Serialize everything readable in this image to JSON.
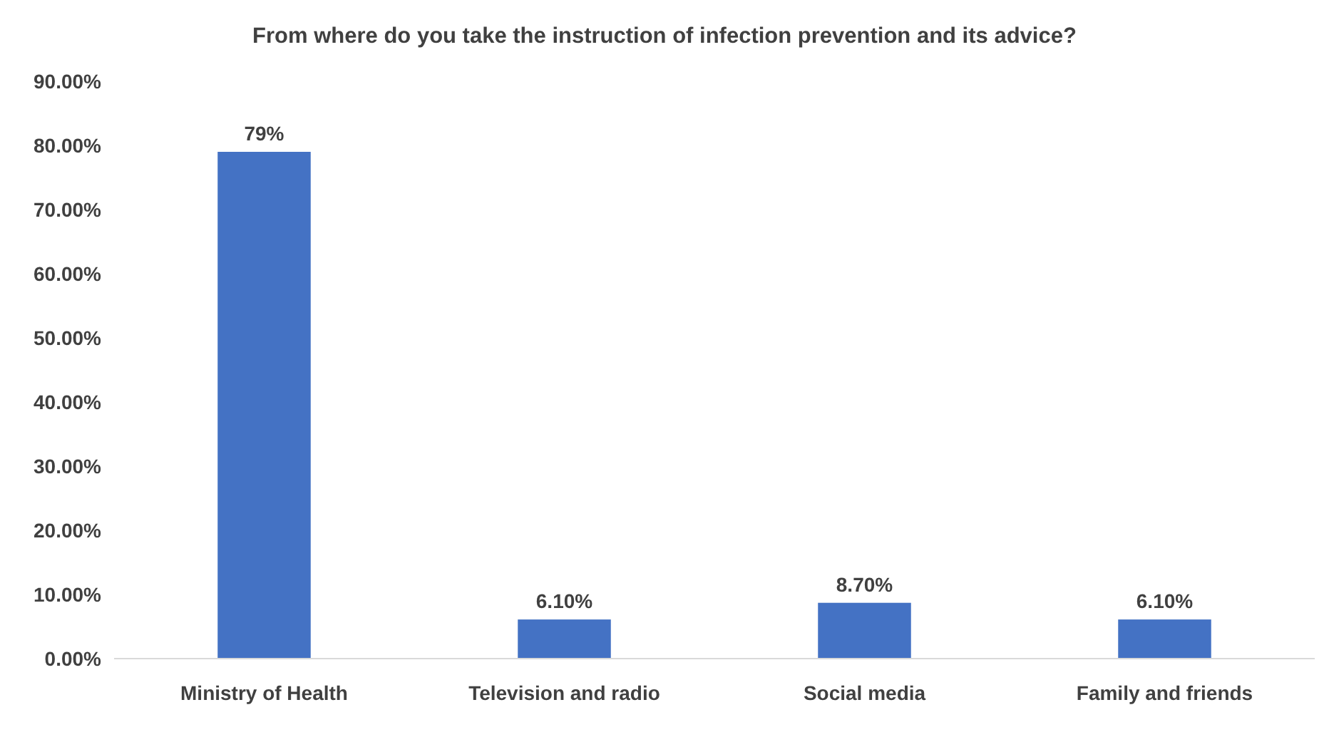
{
  "chart_data": {
    "type": "bar",
    "title": "From where do you take the instruction of infection prevention and its advice?",
    "categories": [
      "Ministry of Health",
      "Television and radio",
      "Social media",
      "Family and friends"
    ],
    "values": [
      79,
      6.1,
      8.7,
      6.1
    ],
    "value_labels": [
      "79%",
      "6.10%",
      "8.70%",
      "6.10%"
    ],
    "color": "#4472c4",
    "ylim": [
      0,
      90
    ],
    "yticks": [
      {
        "value": 0,
        "label": "0.00%"
      },
      {
        "value": 10,
        "label": "10.00%"
      },
      {
        "value": 20,
        "label": "20.00%"
      },
      {
        "value": 30,
        "label": "30.00%"
      },
      {
        "value": 40,
        "label": "40.00%"
      },
      {
        "value": 50,
        "label": "50.00%"
      },
      {
        "value": 60,
        "label": "60.00%"
      },
      {
        "value": 70,
        "label": "70.00%"
      },
      {
        "value": 80,
        "label": "80.00%"
      },
      {
        "value": 90,
        "label": "90.00%"
      }
    ],
    "grid": false
  }
}
